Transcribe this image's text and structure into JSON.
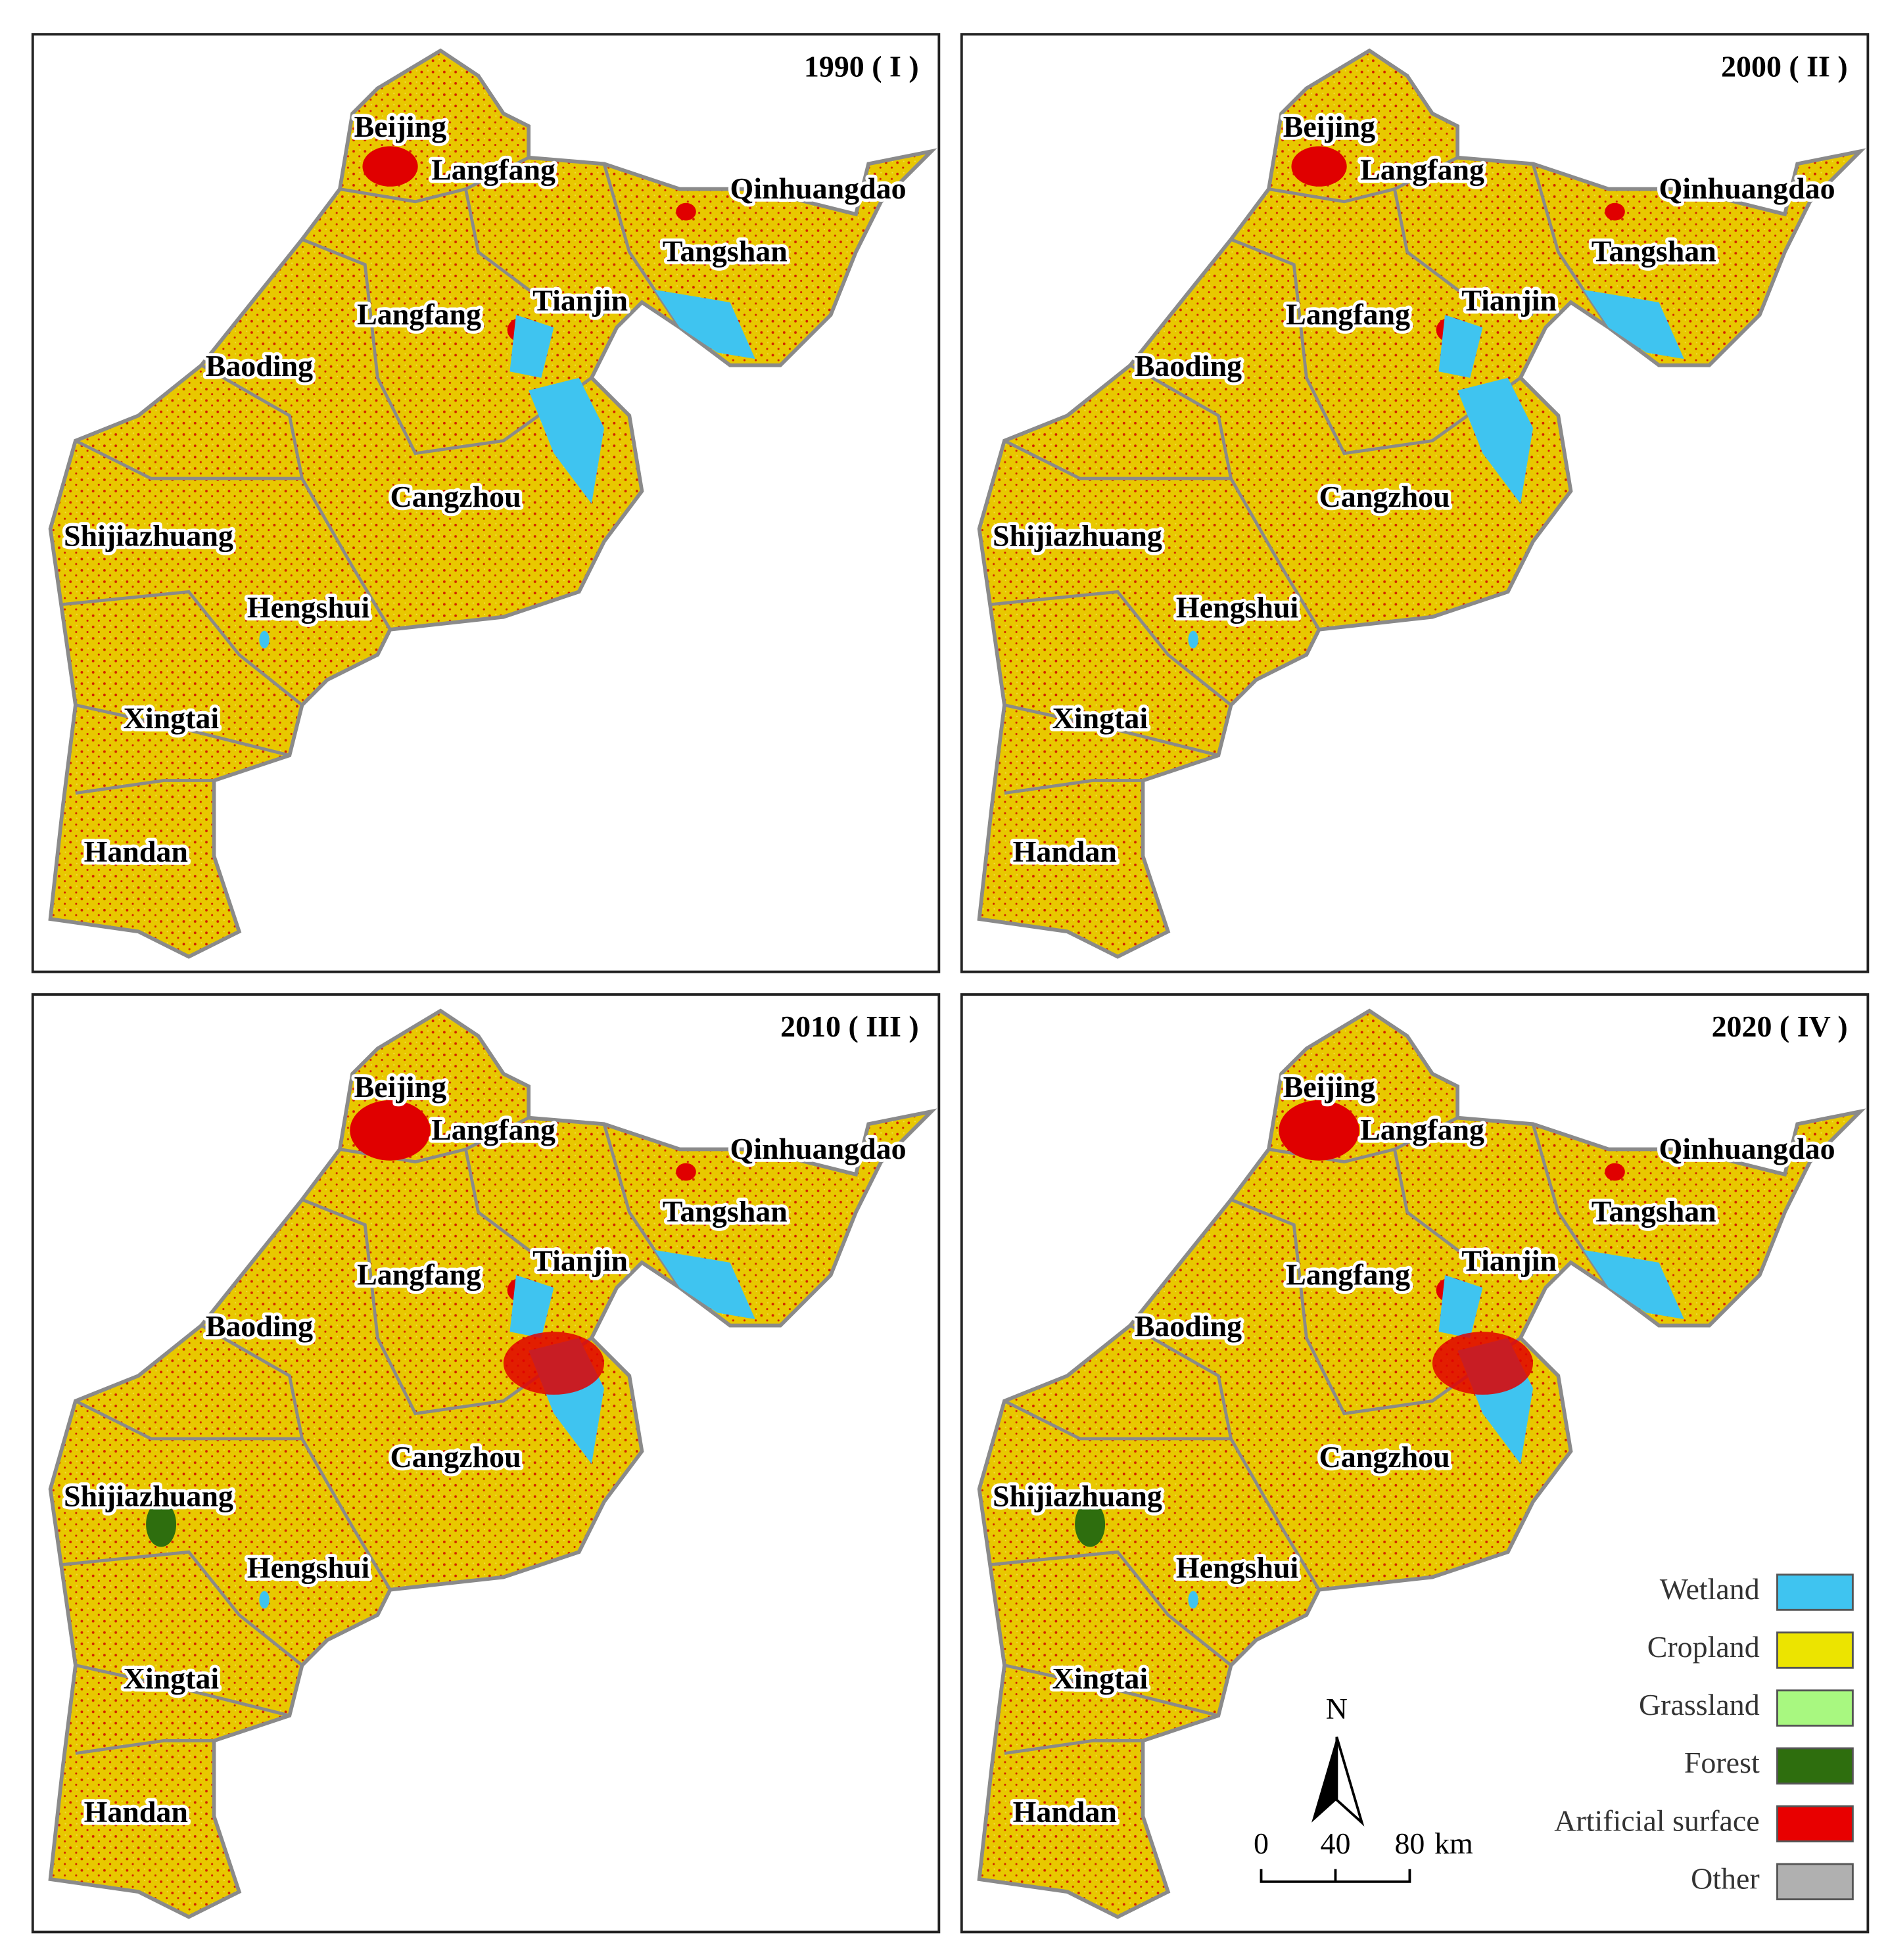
{
  "panels": [
    {
      "title": "1990 ( I )"
    },
    {
      "title": "2000 ( II )"
    },
    {
      "title": "2010 ( III )"
    },
    {
      "title": "2020 ( IV )"
    }
  ],
  "place_names": [
    "Beijing",
    "Langfang",
    "Qinhuangdao",
    "Tangshan",
    "Langfang",
    "Tianjin",
    "Baoding",
    "Cangzhou",
    "Shijiazhuang",
    "Hengshui",
    "Xingtai",
    "Handan"
  ],
  "legend": [
    {
      "label": "Wetland",
      "color": "#3fc4f0"
    },
    {
      "label": "Cropland",
      "color": "#ece400"
    },
    {
      "label": "Grassland",
      "color": "#a8f880"
    },
    {
      "label": "Forest",
      "color": "#2e6e0e"
    },
    {
      "label": "Artificial surface",
      "color": "#e80000"
    },
    {
      "label": "Other",
      "color": "#b0b0b0"
    }
  ],
  "north_label": "N",
  "scale_bar": {
    "labels": [
      "0",
      "40",
      "80"
    ],
    "unit": "km"
  }
}
